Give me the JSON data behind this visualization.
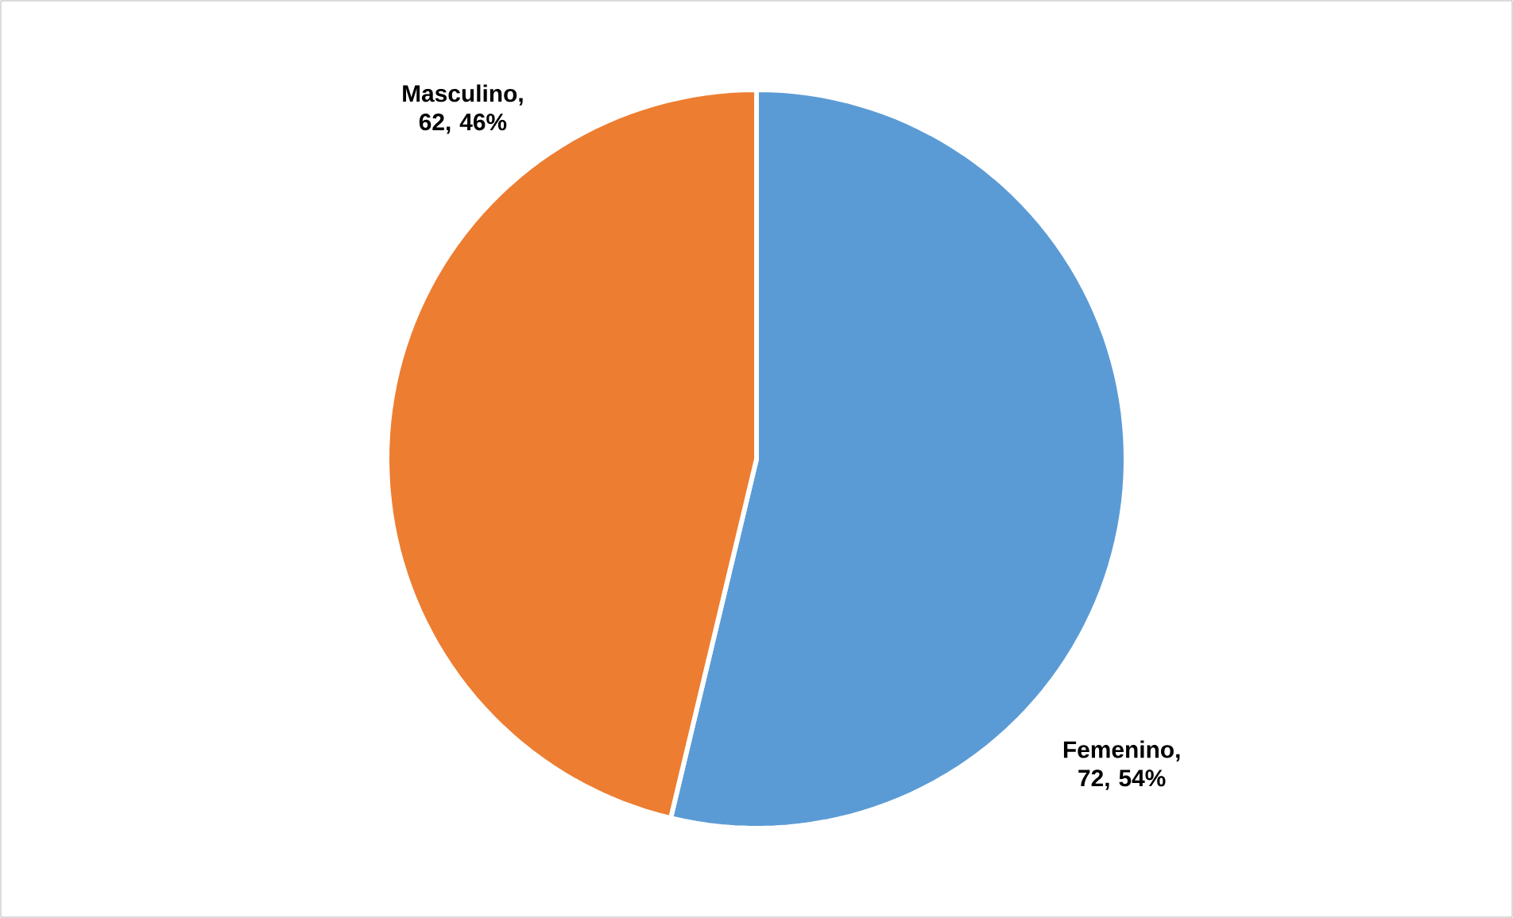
{
  "chart_data": {
    "type": "pie",
    "categories": [
      null,
      null
    ],
    "values": [
      72,
      62
    ],
    "value_labels": [
      "Femenino, 72, 54%",
      "Masculino, 62, 46%"
    ],
    "colors": [
      "#5b9bd5",
      "#ed7d31"
    ]
  }
}
